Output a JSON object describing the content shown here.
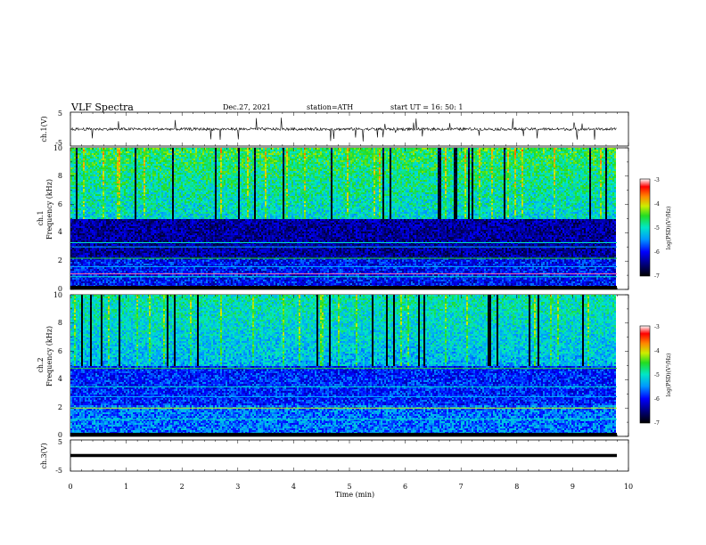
{
  "header": {
    "title": "VLF  Spectra",
    "date": "Dec.27, 2021",
    "station": "station=ATH",
    "start": "start  UT  =    16: 50: 1"
  },
  "chart_data": [
    {
      "type": "line",
      "panel": "ch1-waveform",
      "ylabel": "ch.1(V)",
      "ylim": [
        -5,
        5
      ],
      "yticks": [
        "5",
        "-5"
      ],
      "xlim": [
        0,
        10
      ]
    },
    {
      "type": "heatmap",
      "panel": "ch1-spectrogram",
      "ylabel_top": "ch.1",
      "ylabel": "Frequency  (kHz)",
      "ylim": [
        0,
        10
      ],
      "yticks": [
        "0",
        "2",
        "4",
        "6",
        "8",
        "10"
      ],
      "xlim": [
        0,
        10
      ],
      "colorbar": {
        "label": "log(PSD)(V²/Hz)",
        "ticks": [
          "-3",
          "-4",
          "-5",
          "-6",
          "-7"
        ],
        "range": [
          -7,
          -3
        ]
      }
    },
    {
      "type": "heatmap",
      "panel": "ch2-spectrogram",
      "ylabel_top": "ch.2",
      "ylabel": "Frequency  (kHz)",
      "ylim": [
        0,
        10
      ],
      "yticks": [
        "0",
        "2",
        "4",
        "6",
        "8",
        "10"
      ],
      "xlim": [
        0,
        10
      ],
      "colorbar": {
        "label": "log(PSD)(V²/Hz)",
        "ticks": [
          "-3",
          "-4",
          "-5",
          "-6",
          "-7"
        ],
        "range": [
          -7,
          -3
        ]
      }
    },
    {
      "type": "line",
      "panel": "ch3-waveform",
      "ylabel": "ch.3(V)",
      "ylim": [
        -5,
        5
      ],
      "yticks": [
        "5",
        "-5"
      ],
      "xlim": [
        0,
        10
      ],
      "xlabel": "Time  (min)",
      "xticks": [
        "0",
        "1",
        "2",
        "3",
        "4",
        "5",
        "6",
        "7",
        "8",
        "9",
        "10"
      ]
    }
  ]
}
